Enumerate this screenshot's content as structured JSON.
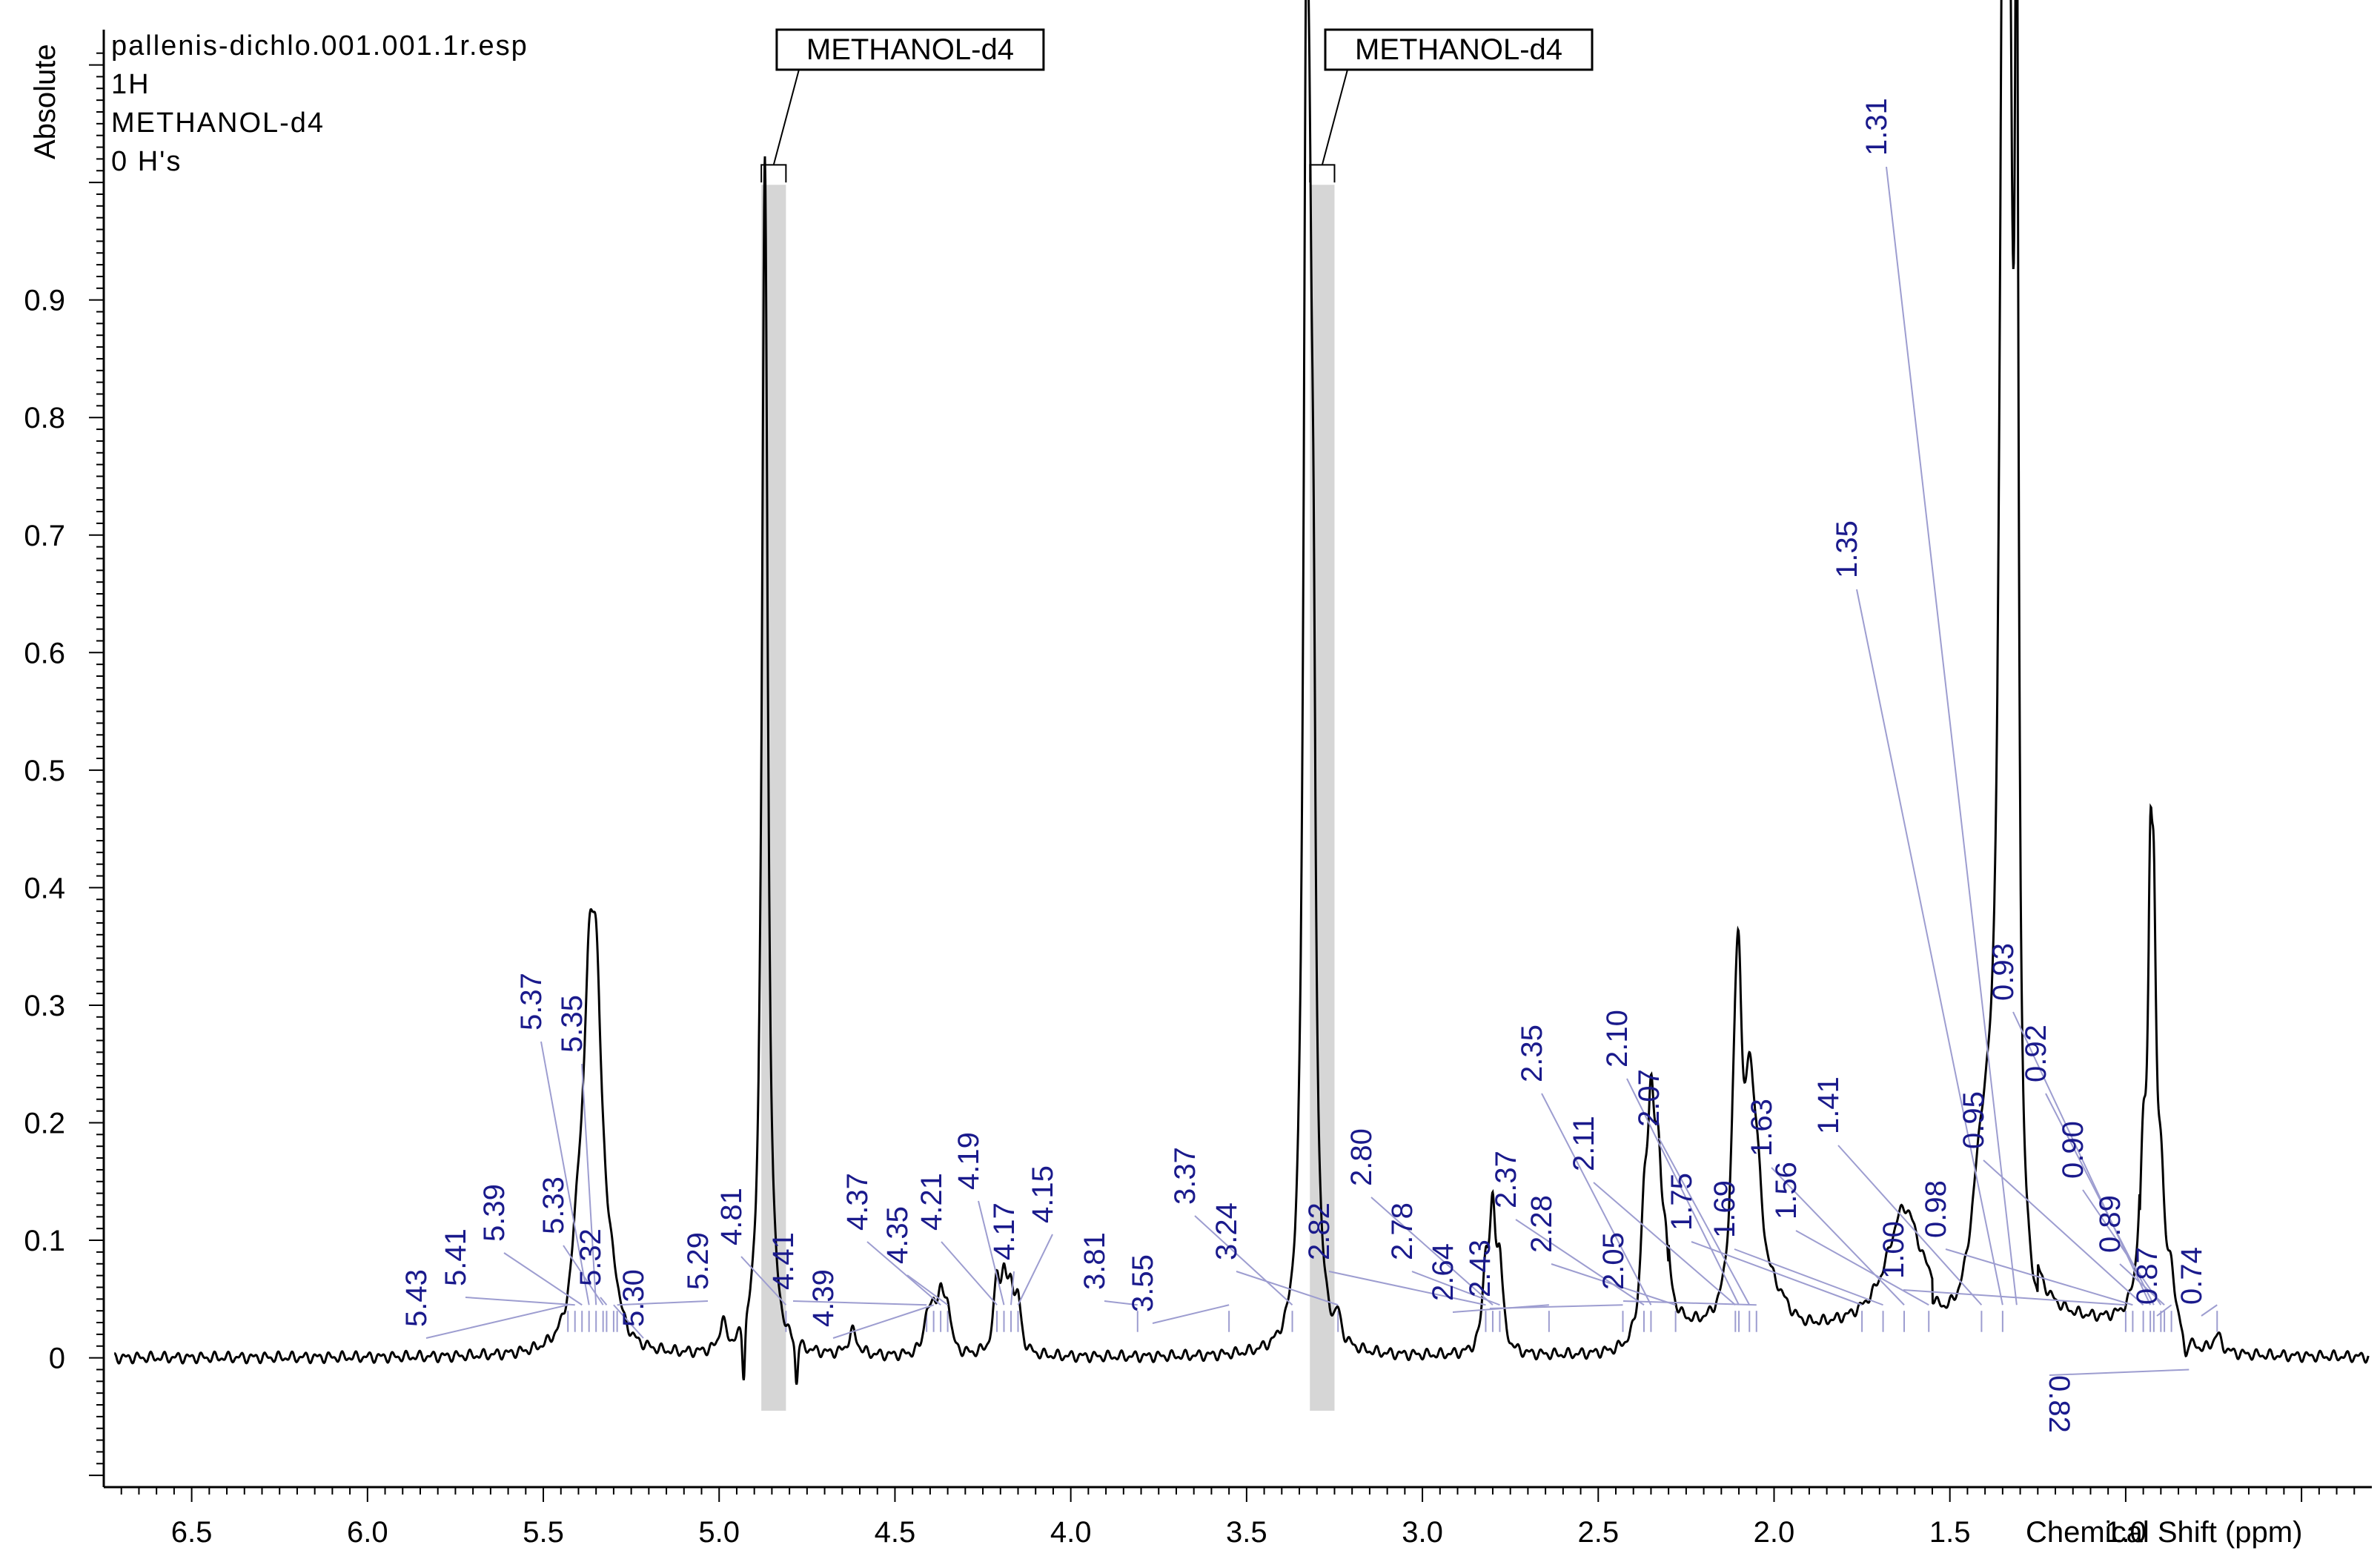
{
  "chart_data": {
    "type": "line",
    "info": [
      "pallenis-dichlo.001.001.1r.esp",
      "1H",
      "METHANOL-d4",
      "0 H's"
    ],
    "xlabel": "Chemical Shift (ppm)",
    "ylabel": "Absolute",
    "xlim": [
      6.75,
      0.3
    ],
    "ylim": [
      -0.11,
      1.13
    ],
    "x_ticks": [
      "6.5",
      "6.0",
      "5.5",
      "5.0",
      "4.5",
      "4.0",
      "3.5",
      "3.0",
      "2.5",
      "2.0",
      "1.5",
      "1.0"
    ],
    "y_ticks": [
      "0",
      "0.1",
      "0.2",
      "0.3",
      "0.4",
      "0.5",
      "0.6",
      "0.7",
      "0.8",
      "0.9"
    ],
    "solvent_labels": [
      {
        "label": "METHANOL-d4",
        "ppm": 4.87
      },
      {
        "label": "METHANOL-d4",
        "ppm": 3.31
      }
    ],
    "peaks": [
      {
        "ppm": 5.43,
        "label": "5.43"
      },
      {
        "ppm": 5.41,
        "label": "5.41"
      },
      {
        "ppm": 5.39,
        "label": "5.39"
      },
      {
        "ppm": 5.37,
        "label": "5.37"
      },
      {
        "ppm": 5.35,
        "label": "5.35"
      },
      {
        "ppm": 5.33,
        "label": "5.33"
      },
      {
        "ppm": 5.32,
        "label": "5.32"
      },
      {
        "ppm": 5.3,
        "label": "5.30"
      },
      {
        "ppm": 5.29,
        "label": "5.29"
      },
      {
        "ppm": 4.81,
        "label": "4.81"
      },
      {
        "ppm": 4.41,
        "label": "4.41"
      },
      {
        "ppm": 4.39,
        "label": "4.39"
      },
      {
        "ppm": 4.37,
        "label": "4.37"
      },
      {
        "ppm": 4.35,
        "label": "4.35"
      },
      {
        "ppm": 4.21,
        "label": "4.21"
      },
      {
        "ppm": 4.19,
        "label": "4.19"
      },
      {
        "ppm": 4.17,
        "label": "4.17"
      },
      {
        "ppm": 4.15,
        "label": "4.15"
      },
      {
        "ppm": 3.81,
        "label": "3.81"
      },
      {
        "ppm": 3.55,
        "label": "3.55"
      },
      {
        "ppm": 3.37,
        "label": "3.37"
      },
      {
        "ppm": 3.24,
        "label": "3.24"
      },
      {
        "ppm": 2.82,
        "label": "2.82"
      },
      {
        "ppm": 2.8,
        "label": "2.80"
      },
      {
        "ppm": 2.78,
        "label": "2.78"
      },
      {
        "ppm": 2.64,
        "label": "2.64"
      },
      {
        "ppm": 2.43,
        "label": "2.43"
      },
      {
        "ppm": 2.37,
        "label": "2.37"
      },
      {
        "ppm": 2.35,
        "label": "2.35"
      },
      {
        "ppm": 2.28,
        "label": "2.28"
      },
      {
        "ppm": 2.11,
        "label": "2.11"
      },
      {
        "ppm": 2.1,
        "label": "2.10"
      },
      {
        "ppm": 2.07,
        "label": "2.07"
      },
      {
        "ppm": 2.05,
        "label": "2.05"
      },
      {
        "ppm": 1.75,
        "label": "1.75"
      },
      {
        "ppm": 1.69,
        "label": "1.69"
      },
      {
        "ppm": 1.63,
        "label": "1.63"
      },
      {
        "ppm": 1.56,
        "label": "1.56"
      },
      {
        "ppm": 1.41,
        "label": "1.41"
      },
      {
        "ppm": 1.35,
        "label": "1.35"
      },
      {
        "ppm": 1.31,
        "label": "1.31"
      },
      {
        "ppm": 1.0,
        "label": "1.00"
      },
      {
        "ppm": 0.98,
        "label": "0.98"
      },
      {
        "ppm": 0.95,
        "label": "0.95"
      },
      {
        "ppm": 0.93,
        "label": "0.93"
      },
      {
        "ppm": 0.92,
        "label": "0.92"
      },
      {
        "ppm": 0.9,
        "label": "0.90"
      },
      {
        "ppm": 0.89,
        "label": "0.89"
      },
      {
        "ppm": 0.87,
        "label": "0.87"
      },
      {
        "ppm": 0.82,
        "label": "0.82"
      },
      {
        "ppm": 0.74,
        "label": "0.74"
      }
    ],
    "spectrum_lines": [
      {
        "ppm": 5.37,
        "y": 0.232,
        "w": 0.018
      },
      {
        "ppm": 5.35,
        "y": 0.224,
        "w": 0.018
      },
      {
        "ppm": 5.4,
        "y": 0.08,
        "w": 0.02
      },
      {
        "ppm": 5.33,
        "y": 0.05,
        "w": 0.02
      },
      {
        "ppm": 5.3,
        "y": 0.03,
        "w": 0.02
      },
      {
        "ppm": 4.99,
        "y": 0.025,
        "w": 0.01
      },
      {
        "ppm": 4.87,
        "y": 1.02,
        "w": 0.01
      },
      {
        "ppm": 4.62,
        "y": 0.02,
        "w": 0.015
      },
      {
        "ppm": 4.41,
        "y": 0.03,
        "w": 0.01
      },
      {
        "ppm": 4.39,
        "y": 0.035,
        "w": 0.01
      },
      {
        "ppm": 4.37,
        "y": 0.045,
        "w": 0.01
      },
      {
        "ppm": 4.35,
        "y": 0.04,
        "w": 0.01
      },
      {
        "ppm": 4.21,
        "y": 0.06,
        "w": 0.01
      },
      {
        "ppm": 4.19,
        "y": 0.055,
        "w": 0.01
      },
      {
        "ppm": 4.17,
        "y": 0.05,
        "w": 0.01
      },
      {
        "ppm": 4.15,
        "y": 0.04,
        "w": 0.01
      },
      {
        "ppm": 3.33,
        "y": 1.02,
        "w": 0.01
      },
      {
        "ppm": 3.32,
        "y": 0.4,
        "w": 0.008
      },
      {
        "ppm": 3.31,
        "y": 0.4,
        "w": 0.008
      },
      {
        "ppm": 3.24,
        "y": 0.02,
        "w": 0.01
      },
      {
        "ppm": 2.82,
        "y": 0.07,
        "w": 0.01
      },
      {
        "ppm": 2.8,
        "y": 0.11,
        "w": 0.01
      },
      {
        "ppm": 2.78,
        "y": 0.07,
        "w": 0.01
      },
      {
        "ppm": 2.37,
        "y": 0.09,
        "w": 0.012
      },
      {
        "ppm": 2.35,
        "y": 0.18,
        "w": 0.012
      },
      {
        "ppm": 2.33,
        "y": 0.12,
        "w": 0.012
      },
      {
        "ppm": 2.31,
        "y": 0.07,
        "w": 0.012
      },
      {
        "ppm": 2.11,
        "y": 0.15,
        "w": 0.015
      },
      {
        "ppm": 2.1,
        "y": 0.19,
        "w": 0.012
      },
      {
        "ppm": 2.07,
        "y": 0.14,
        "w": 0.015
      },
      {
        "ppm": 2.05,
        "y": 0.1,
        "w": 0.02
      },
      {
        "ppm": 1.63,
        "y": 0.1,
        "w": 0.06
      },
      {
        "ppm": 1.35,
        "y": 0.69,
        "w": 0.012
      },
      {
        "ppm": 1.34,
        "y": 0.67,
        "w": 0.012
      },
      {
        "ppm": 1.33,
        "y": 0.6,
        "w": 0.012
      },
      {
        "ppm": 1.31,
        "y": 1.0,
        "w": 0.006
      },
      {
        "ppm": 1.41,
        "y": 0.1,
        "w": 0.04
      },
      {
        "ppm": 0.95,
        "y": 0.14,
        "w": 0.012
      },
      {
        "ppm": 0.93,
        "y": 0.3,
        "w": 0.008
      },
      {
        "ppm": 0.92,
        "y": 0.26,
        "w": 0.008
      },
      {
        "ppm": 0.9,
        "y": 0.12,
        "w": 0.012
      },
      {
        "ppm": 0.87,
        "y": 0.05,
        "w": 0.015
      },
      {
        "ppm": 0.74,
        "y": 0.015,
        "w": 0.015
      }
    ]
  }
}
